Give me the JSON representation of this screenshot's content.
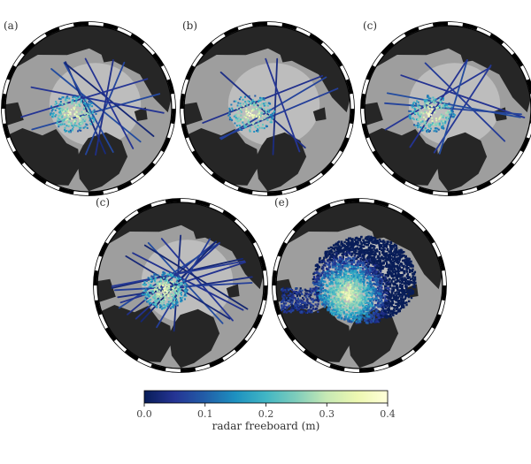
{
  "chart_data": [
    {
      "type": "heatmap",
      "panel_label": "(a)",
      "coverage": "tracks",
      "track_count": 10
    },
    {
      "type": "heatmap",
      "panel_label": "(b)",
      "coverage": "tracks",
      "track_count": 6
    },
    {
      "type": "heatmap",
      "panel_label": "(c)",
      "coverage": "tracks",
      "track_count": 8
    },
    {
      "type": "heatmap",
      "panel_label": "(c)",
      "coverage": "tracks",
      "track_count": 16
    },
    {
      "type": "heatmap",
      "panel_label": "(e)",
      "coverage": "gridded",
      "track_count": 0
    }
  ],
  "colorbar": {
    "label": "radar freeboard (m)",
    "ticks": [
      "0.0",
      "0.1",
      "0.2",
      "0.3",
      "0.4"
    ],
    "vmin": 0.0,
    "vmax": 0.4,
    "colors": [
      "#081d58",
      "#253494",
      "#225ea8",
      "#1d91c0",
      "#41b6c4",
      "#7fcdbb",
      "#c7e9b4",
      "#edf8b1",
      "#ffffd9"
    ]
  },
  "colors": {
    "ocean": "#9e9e9e",
    "land": "#262626",
    "ice_region": "#bdbdbd",
    "frame": "#000000"
  }
}
